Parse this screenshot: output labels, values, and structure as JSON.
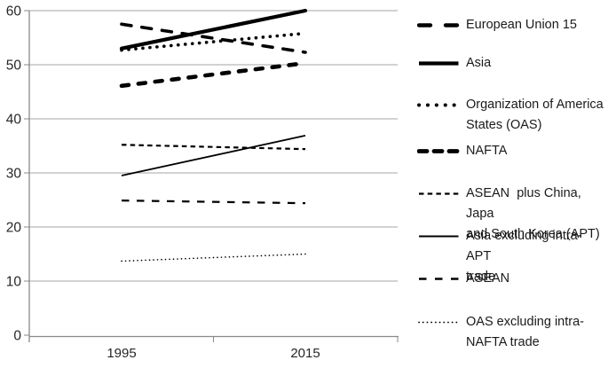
{
  "chart_data": {
    "type": "line",
    "title": "",
    "xlabel": "",
    "ylabel": "",
    "x_categories": [
      "1995",
      "2015"
    ],
    "ylim": [
      0,
      60
    ],
    "yticks": [
      0,
      10,
      20,
      30,
      40,
      50,
      60
    ],
    "grid": true,
    "legend_position": "right",
    "series": [
      {
        "name": "European Union 15",
        "legend_label": "European Union 15",
        "values": [
          57.5,
          52.3
        ],
        "style": "dash-bold"
      },
      {
        "name": "Asia",
        "legend_label": "Asia",
        "values": [
          53,
          60
        ],
        "style": "solid-bold"
      },
      {
        "name": "Organization of America States (OAS)",
        "legend_label": "Organization of America\nStates (OAS)",
        "values": [
          52.7,
          55.8
        ],
        "style": "dotted-bold"
      },
      {
        "name": "NAFTA",
        "legend_label": "NAFTA",
        "values": [
          46.1,
          50.3
        ],
        "style": "dash-heavy"
      },
      {
        "name": "ASEAN plus China, Japa and South Korea (APT)",
        "legend_label": "ASEAN  plus China, Japa\nand South Korea (APT)",
        "values": [
          35.2,
          34.4
        ],
        "style": "dash-fine"
      },
      {
        "name": "Asia excluding intra-APT trade",
        "legend_label": "Asia excluding intra-APT\ntrade",
        "values": [
          29.5,
          36.9
        ],
        "style": "solid-thin"
      },
      {
        "name": "ASEAN",
        "legend_label": "ASEAN",
        "values": [
          24.9,
          24.4
        ],
        "style": "dash-thin"
      },
      {
        "name": "OAS excluding intra-NAFTA trade",
        "legend_label": "OAS excluding intra-\nNAFTA trade",
        "values": [
          13.7,
          15.0
        ],
        "style": "dotted-fine"
      }
    ]
  },
  "colors": {
    "series_line": "#000000",
    "gridline": "#a6a6a6",
    "axis": "#898989",
    "tick_text": "#262626",
    "legend_text": "#1a1a1a",
    "background": "#ffffff"
  }
}
